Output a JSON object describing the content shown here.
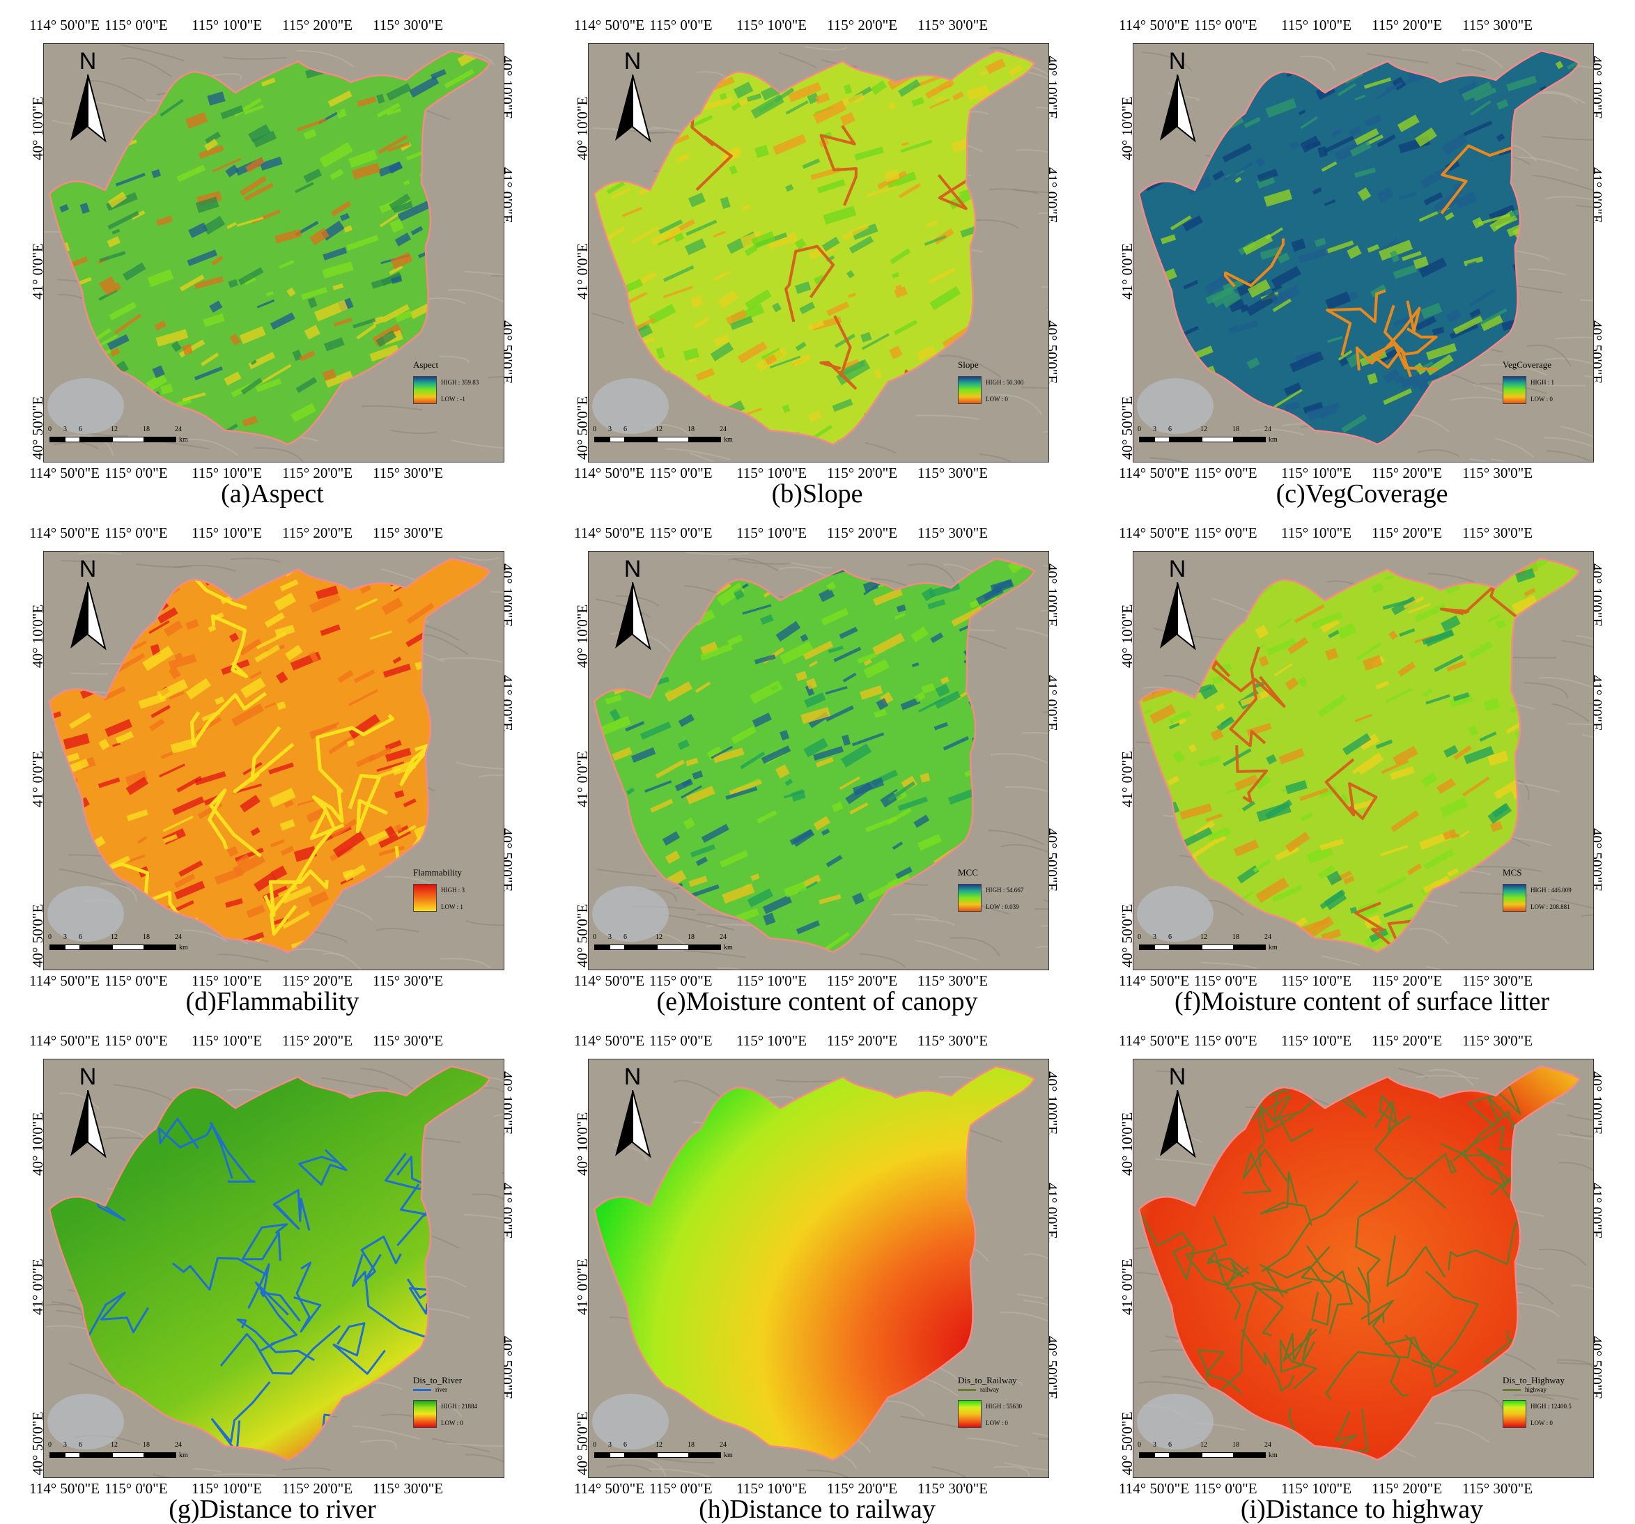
{
  "figure": {
    "panels": [
      {
        "id": "a",
        "caption": "(a)Aspect",
        "legend": {
          "title": "Aspect",
          "high_label": "HIGH : 359.83",
          "low_label": "LOW : -1",
          "ramp": [
            "#203a8c",
            "#1fb089",
            "#7ee51a",
            "#f2c31c",
            "#e8541a"
          ],
          "line_label": ""
        },
        "style": "aspect"
      },
      {
        "id": "b",
        "caption": "(b)Slope",
        "legend": {
          "title": "Slope",
          "high_label": "HIGH : 50.300",
          "low_label": "LOW : 0",
          "ramp": [
            "#203a8c",
            "#1fb089",
            "#7ee51a",
            "#f2c31c",
            "#e8541a"
          ],
          "line_label": ""
        },
        "style": "slope"
      },
      {
        "id": "c",
        "caption": "(c)VegCoverage",
        "legend": {
          "title": "VegCoverage",
          "high_label": "HIGH : 1",
          "low_label": "LOW : 0",
          "ramp": [
            "#203a8c",
            "#1fb089",
            "#7ee51a",
            "#f2c31c",
            "#e8541a"
          ],
          "line_label": ""
        },
        "style": "veg"
      },
      {
        "id": "d",
        "caption": "(d)Flammability",
        "legend": {
          "title": "Flammability",
          "high_label": "HIGH : 3",
          "low_label": "LOW : 1",
          "ramp": [
            "#e30d0d",
            "#f3711a",
            "#fbe11e"
          ],
          "line_label": ""
        },
        "style": "flam"
      },
      {
        "id": "e",
        "caption": "(e)Moisture content of canopy",
        "legend": {
          "title": "MCC",
          "high_label": "HIGH : 54.667",
          "low_label": "LOW : 0.039",
          "ramp": [
            "#203a8c",
            "#1fb089",
            "#7ee51a",
            "#f2c31c",
            "#e8541a"
          ],
          "line_label": ""
        },
        "style": "mcc"
      },
      {
        "id": "f",
        "caption": "(f)Moisture content of surface litter",
        "legend": {
          "title": "MCS",
          "high_label": "HIGH : 446.009",
          "low_label": "LOW : 208.881",
          "ramp": [
            "#203a8c",
            "#1fb089",
            "#7ee51a",
            "#f2c31c",
            "#e8541a"
          ],
          "line_label": ""
        },
        "style": "mcs"
      },
      {
        "id": "g",
        "caption": "(g)Distance to river",
        "legend": {
          "title": "Dis_to_River",
          "high_label": "HIGH : 21884",
          "low_label": "LOW : 0",
          "ramp": [
            "#1ea01e",
            "#8fe01a",
            "#f3e51c",
            "#f36a1a",
            "#e00d0d"
          ],
          "line_label": "river",
          "line_color": "#1f6fd0"
        },
        "style": "river"
      },
      {
        "id": "h",
        "caption": "(h)Distance to railway",
        "legend": {
          "title": "Dis_to_Railway",
          "high_label": "HIGH : 55630",
          "low_label": "LOW : 0",
          "ramp": [
            "#22e01a",
            "#d8ef1c",
            "#f3c51c",
            "#f36a1a",
            "#e00d0d"
          ],
          "line_label": "railway",
          "line_color": "#6a7a30"
        },
        "style": "railway"
      },
      {
        "id": "i",
        "caption": "(i)Distance to highway",
        "legend": {
          "title": "Dis_to_Highway",
          "high_label": "HIGH : 12400.5",
          "low_label": "LOW : 0",
          "ramp": [
            "#22e01a",
            "#d8ef1c",
            "#f3c51c",
            "#f36a1a",
            "#e00d0d"
          ],
          "line_label": "highway",
          "line_color": "#6a7a30"
        },
        "style": "highway"
      }
    ],
    "lon_ticks": [
      "114° 50'0\"E",
      "115° 0'0\"E",
      "115° 10'0\"E",
      "115° 20'0\"E",
      "115° 30'0\"E"
    ],
    "lat_ticks": [
      "40° 50'0\"E",
      "41° 0'0\"E",
      "40° 10'0\"E"
    ],
    "north_label": "N",
    "scale": {
      "numbers": [
        "0",
        "3",
        "6",
        "12",
        "18",
        "24"
      ],
      "unit": "km"
    }
  }
}
